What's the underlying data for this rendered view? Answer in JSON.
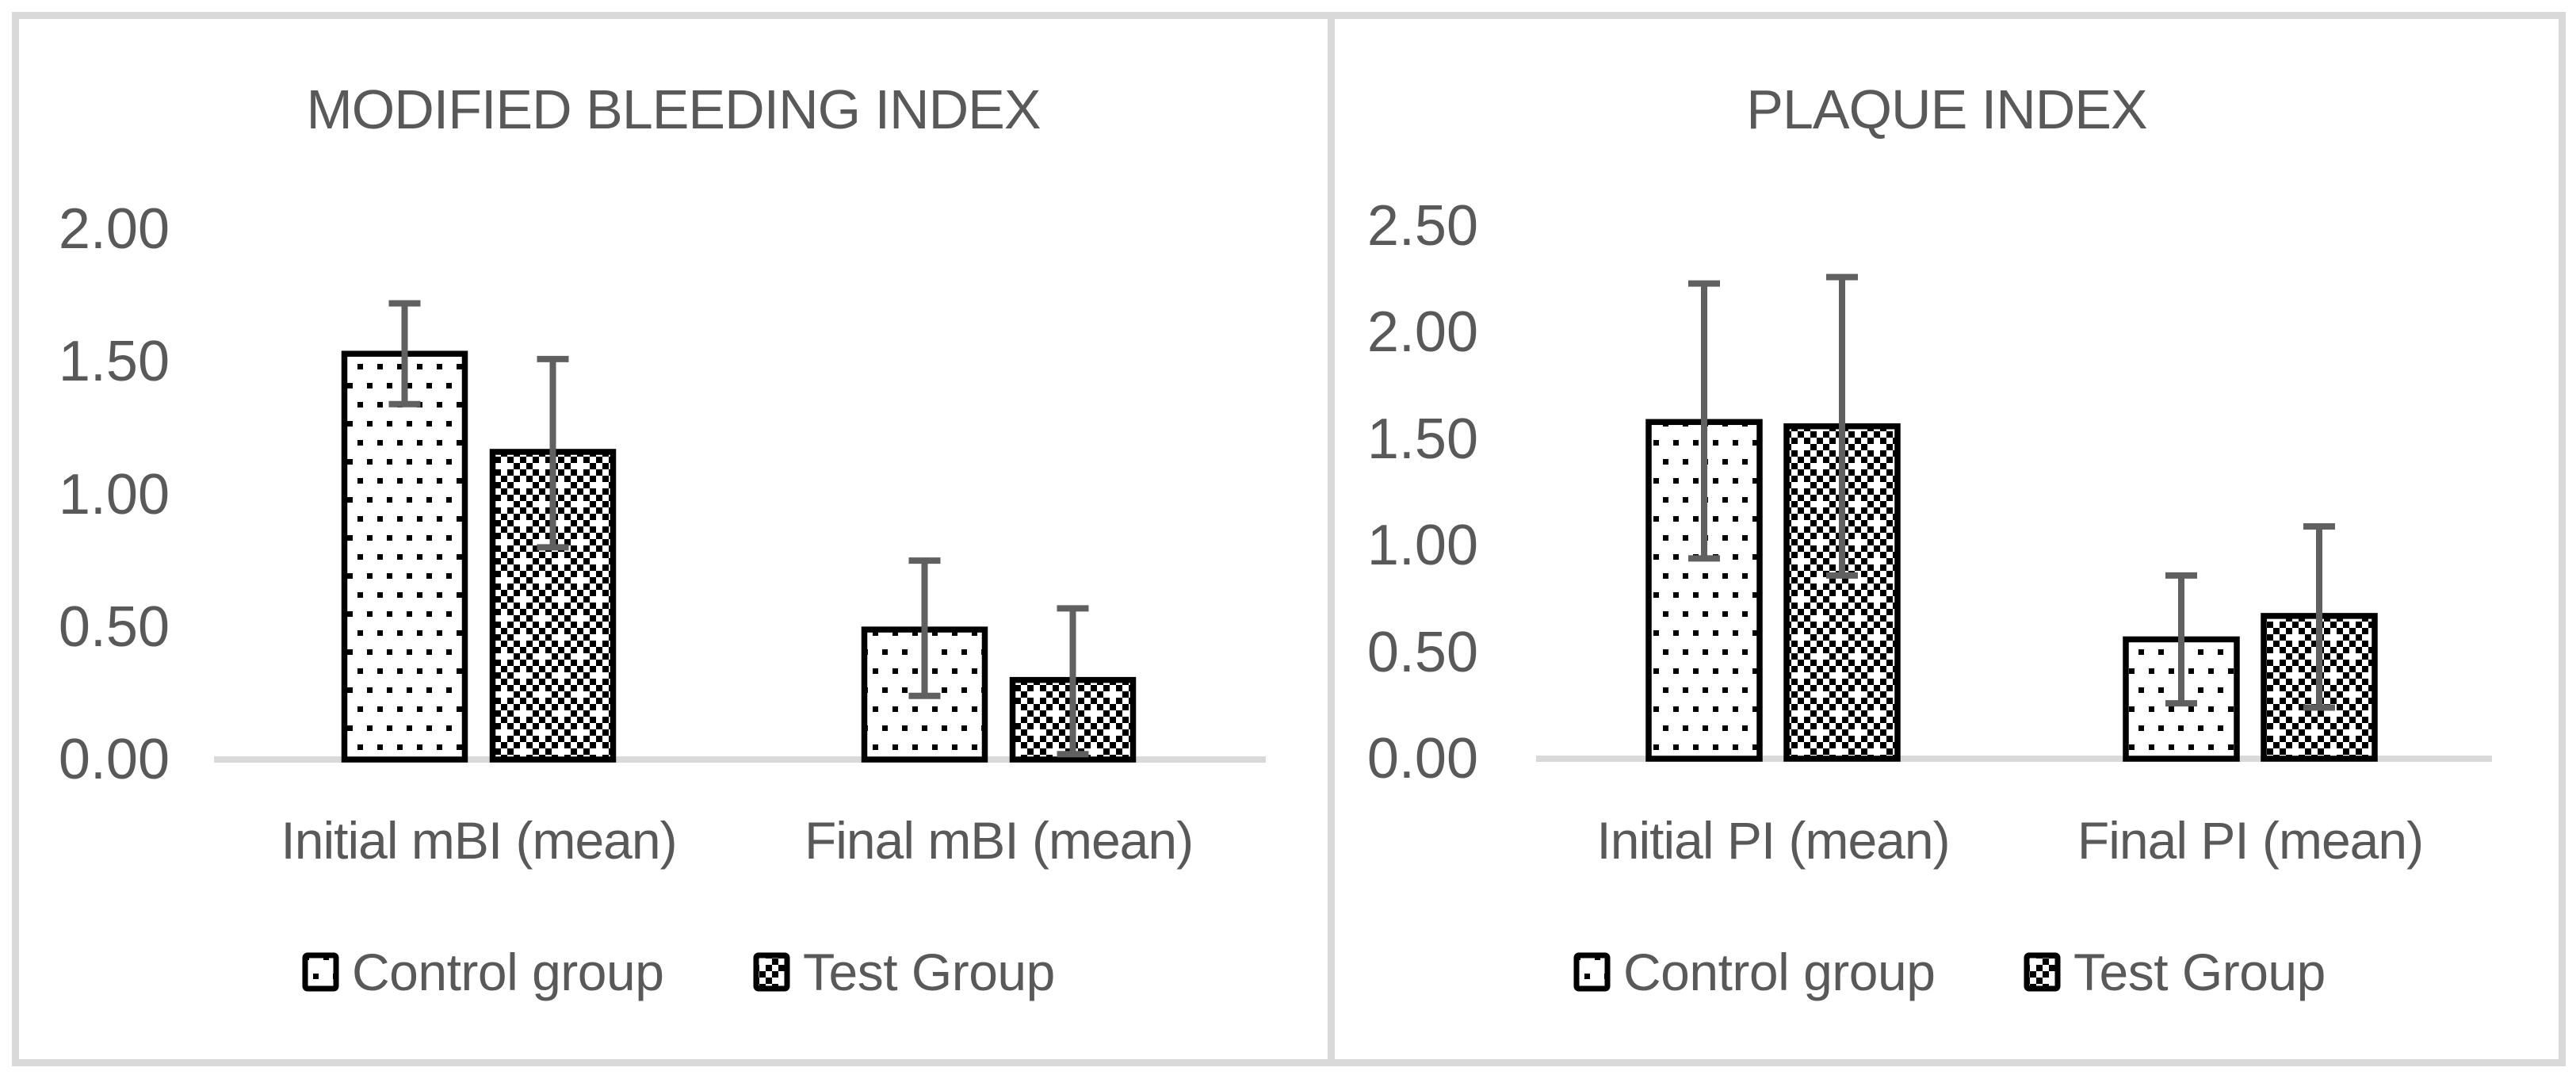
{
  "figure": {
    "kind": "two-panel grouped bar figure with error bars",
    "panel_count": 2
  },
  "colors": {
    "text": "#595959",
    "axis_line": "#d9d9d9",
    "frame": "#d9d9d9",
    "error_bar": "#606060",
    "bar_outline": "#000000",
    "bar_fill": "#ffffff"
  },
  "legend": {
    "items": [
      {
        "label": "Control group",
        "pattern": "dots"
      },
      {
        "label": "Test Group",
        "pattern": "checker"
      }
    ]
  },
  "chart_data": [
    {
      "type": "bar",
      "title": "MODIFIED BLEEDING INDEX",
      "xlabel": "",
      "ylabel": "",
      "categories": [
        "Initial mBI (mean)",
        "Final mBI (mean)"
      ],
      "series": [
        {
          "name": "Control group",
          "pattern": "dots",
          "values": [
            1.53,
            0.49
          ],
          "err_low": [
            1.34,
            0.24
          ],
          "err_high": [
            1.72,
            0.75
          ]
        },
        {
          "name": "Test Group",
          "pattern": "checker",
          "values": [
            1.16,
            0.3
          ],
          "err_low": [
            0.8,
            0.02
          ],
          "err_high": [
            1.51,
            0.57
          ]
        }
      ],
      "ylim": [
        0,
        2.0
      ],
      "yticks": [
        {
          "value": 0.0,
          "label": "0.00"
        },
        {
          "value": 0.5,
          "label": "0.50"
        },
        {
          "value": 1.0,
          "label": "1.00"
        },
        {
          "value": 1.5,
          "label": "1.50"
        },
        {
          "value": 2.0,
          "label": "2.00"
        }
      ],
      "grid": false,
      "error_bars": true,
      "legend_position": "bottom"
    },
    {
      "type": "bar",
      "title": "PLAQUE INDEX",
      "xlabel": "",
      "ylabel": "",
      "categories": [
        "Initial PI (mean)",
        "Final PI (mean)"
      ],
      "series": [
        {
          "name": "Control group",
          "pattern": "dots",
          "values": [
            1.58,
            0.56
          ],
          "err_low": [
            0.94,
            0.26
          ],
          "err_high": [
            2.23,
            0.86
          ]
        },
        {
          "name": "Test Group",
          "pattern": "checker",
          "values": [
            1.56,
            0.67
          ],
          "err_low": [
            0.86,
            0.24
          ],
          "err_high": [
            2.26,
            1.09
          ]
        }
      ],
      "ylim": [
        0,
        2.5
      ],
      "yticks": [
        {
          "value": 0.0,
          "label": "0.00"
        },
        {
          "value": 0.5,
          "label": "0.50"
        },
        {
          "value": 1.0,
          "label": "1.00"
        },
        {
          "value": 1.5,
          "label": "1.50"
        },
        {
          "value": 2.0,
          "label": "2.00"
        },
        {
          "value": 2.5,
          "label": "2.50"
        }
      ],
      "grid": false,
      "error_bars": true,
      "legend_position": "bottom"
    }
  ]
}
